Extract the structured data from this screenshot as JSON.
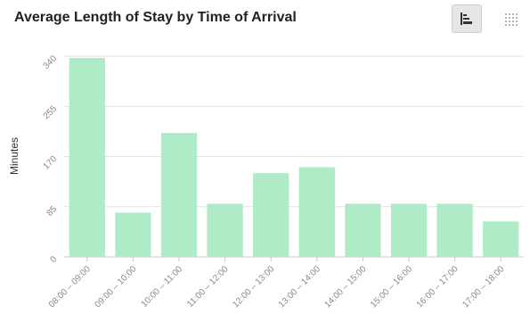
{
  "header": {
    "title": "Average Length of Stay by Time of Arrival"
  },
  "toolbar": {
    "bar_view_icon": "bar-chart-icon",
    "grid_view_icon": "grid-dots-icon",
    "active_view": "bar"
  },
  "colors": {
    "bar": "#b0ebc8",
    "gridline": "#e3e3e3",
    "axis": "#c8c8c8",
    "tick_text": "#8a8a8a"
  },
  "chart_data": {
    "type": "bar",
    "title": "Average Length of Stay by Time of Arrival",
    "xlabel": "",
    "ylabel": "Minutes",
    "ylim": [
      0,
      340
    ],
    "yticks": [
      0,
      85,
      170,
      255,
      340
    ],
    "grid": true,
    "categories": [
      "08:00 – 09:00",
      "09:00 – 10:00",
      "10:00 – 11:00",
      "11:00 – 12:00",
      "12:00 – 13:00",
      "13:00 – 14:00",
      "14:00 – 15:00",
      "15:00 – 16:00",
      "16:00 – 17:00",
      "17:00 – 18:00"
    ],
    "values": [
      337,
      75,
      210,
      90,
      142,
      152,
      90,
      90,
      90,
      60
    ]
  }
}
